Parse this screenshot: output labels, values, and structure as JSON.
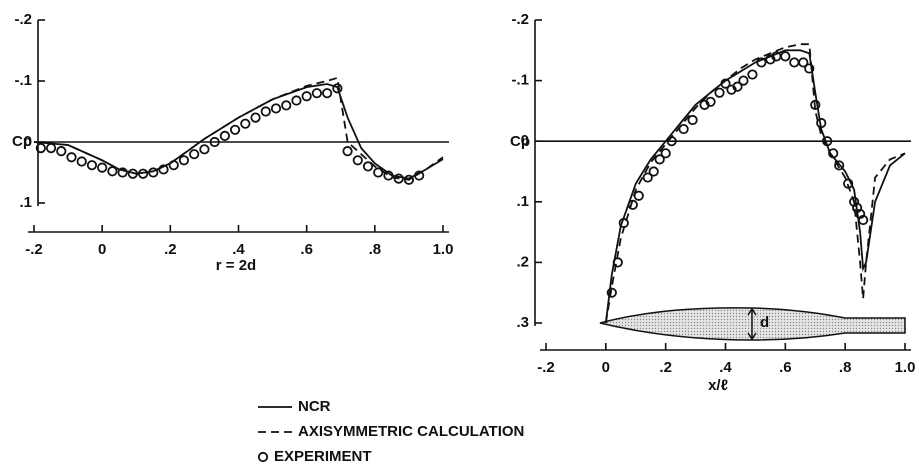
{
  "chart_data": [
    {
      "type": "line",
      "x_label": "r = 2d",
      "y_label": "Cp",
      "xlim": [
        -0.2,
        1.0
      ],
      "ylim": [
        -0.2,
        0.1
      ],
      "y_inverted": true,
      "zero_line": true,
      "xticks": [
        {
          "value": -0.2,
          "label": "-.2"
        },
        0,
        {
          "value": 0.2,
          "label": ".2"
        },
        {
          "value": 0.4,
          "label": ".4"
        },
        {
          "value": 0.6,
          "label": ".6"
        },
        {
          "value": 0.8,
          "label": ".8"
        },
        {
          "value": 1.0,
          "label": "1.0"
        }
      ],
      "yticks": [
        {
          "value": -0.2,
          "label": "-.2"
        },
        {
          "value": -0.1,
          "label": "-.1"
        },
        0,
        {
          "value": 0.1,
          "label": ".1"
        }
      ],
      "series": [
        {
          "name": "NCR",
          "style": "solid",
          "color": "#111111",
          "x": [
            -0.2,
            -0.1,
            0,
            0.05,
            0.1,
            0.15,
            0.2,
            0.25,
            0.3,
            0.4,
            0.5,
            0.6,
            0.66,
            0.69,
            0.72,
            0.76,
            0.8,
            0.85,
            0.9,
            0.95,
            1.0
          ],
          "values": [
            0,
            0.005,
            0.03,
            0.045,
            0.052,
            0.048,
            0.035,
            0.015,
            -0.005,
            -0.04,
            -0.07,
            -0.09,
            -0.095,
            -0.09,
            -0.04,
            0.01,
            0.035,
            0.055,
            0.06,
            0.045,
            0.028
          ]
        },
        {
          "name": "AXISYMMETRIC CALCULATION",
          "style": "dashed",
          "color": "#111111",
          "x": [
            -0.2,
            -0.1,
            0,
            0.05,
            0.1,
            0.15,
            0.2,
            0.25,
            0.3,
            0.4,
            0.5,
            0.6,
            0.66,
            0.69,
            0.72,
            0.76,
            0.8,
            0.85,
            0.9,
            0.95,
            1.0
          ],
          "values": [
            0,
            0.005,
            0.03,
            0.045,
            0.052,
            0.048,
            0.035,
            0.015,
            -0.005,
            -0.04,
            -0.07,
            -0.092,
            -0.1,
            -0.105,
            0.0,
            0.02,
            0.04,
            0.058,
            0.062,
            0.045,
            0.025
          ]
        },
        {
          "name": "EXPERIMENT",
          "style": "marker",
          "color": "#111111",
          "x": [
            -0.18,
            -0.15,
            -0.12,
            -0.09,
            -0.06,
            -0.03,
            0,
            0.03,
            0.06,
            0.09,
            0.12,
            0.15,
            0.18,
            0.21,
            0.24,
            0.27,
            0.3,
            0.33,
            0.36,
            0.39,
            0.42,
            0.45,
            0.48,
            0.51,
            0.54,
            0.57,
            0.6,
            0.63,
            0.66,
            0.69,
            0.72,
            0.75,
            0.78,
            0.81,
            0.84,
            0.87,
            0.9,
            0.93
          ],
          "values": [
            0.01,
            0.01,
            0.015,
            0.025,
            0.032,
            0.038,
            0.042,
            0.048,
            0.05,
            0.052,
            0.052,
            0.05,
            0.045,
            0.038,
            0.03,
            0.02,
            0.012,
            0.0,
            -0.01,
            -0.02,
            -0.03,
            -0.04,
            -0.05,
            -0.055,
            -0.06,
            -0.068,
            -0.075,
            -0.08,
            -0.08,
            -0.088,
            0.015,
            0.03,
            0.04,
            0.05,
            0.055,
            0.06,
            0.062,
            0.055
          ]
        }
      ]
    },
    {
      "type": "line",
      "x_label": "x/ℓ",
      "y_label": "Cp",
      "annotation": "d",
      "xlim": [
        -0.2,
        1.0
      ],
      "ylim": [
        -0.2,
        0.3
      ],
      "y_inverted": true,
      "zero_line": true,
      "xticks": [
        {
          "value": -0.2,
          "label": "-.2"
        },
        0,
        {
          "value": 0.2,
          "label": ".2"
        },
        {
          "value": 0.4,
          "label": ".4"
        },
        {
          "value": 0.6,
          "label": ".6"
        },
        {
          "value": 0.8,
          "label": ".8"
        },
        {
          "value": 1.0,
          "label": "1.0"
        }
      ],
      "yticks": [
        {
          "value": -0.2,
          "label": "-.2"
        },
        {
          "value": -0.1,
          "label": "-.1"
        },
        0,
        {
          "value": 0.1,
          "label": ".1"
        },
        {
          "value": 0.2,
          "label": ".2"
        },
        {
          "value": 0.3,
          "label": ".3"
        }
      ],
      "series": [
        {
          "name": "NCR",
          "style": "solid",
          "color": "#111111",
          "x": [
            0,
            0.02,
            0.05,
            0.1,
            0.15,
            0.2,
            0.25,
            0.3,
            0.35,
            0.4,
            0.45,
            0.5,
            0.55,
            0.6,
            0.65,
            0.68,
            0.7,
            0.72,
            0.75,
            0.8,
            0.83,
            0.85,
            0.86,
            0.87,
            0.9,
            0.95,
            1.0
          ],
          "values": [
            0.3,
            0.22,
            0.14,
            0.07,
            0.03,
            0,
            -0.03,
            -0.06,
            -0.08,
            -0.1,
            -0.115,
            -0.13,
            -0.14,
            -0.15,
            -0.15,
            -0.145,
            -0.08,
            -0.02,
            0.02,
            0.05,
            0.08,
            0.15,
            0.21,
            0.2,
            0.1,
            0.04,
            0.02
          ]
        },
        {
          "name": "AXISYMMETRIC CALCULATION",
          "style": "dashed",
          "color": "#111111",
          "x": [
            0,
            0.02,
            0.05,
            0.1,
            0.15,
            0.2,
            0.25,
            0.3,
            0.35,
            0.4,
            0.45,
            0.5,
            0.55,
            0.6,
            0.65,
            0.68,
            0.7,
            0.72,
            0.75,
            0.8,
            0.83,
            0.85,
            0.86,
            0.87,
            0.9,
            0.95,
            1.0
          ],
          "values": [
            0.3,
            0.24,
            0.16,
            0.08,
            0.035,
            0.005,
            -0.025,
            -0.055,
            -0.08,
            -0.1,
            -0.12,
            -0.135,
            -0.145,
            -0.155,
            -0.16,
            -0.16,
            -0.05,
            -0.01,
            0.02,
            0.06,
            0.1,
            0.2,
            0.26,
            0.2,
            0.06,
            0.03,
            0.02
          ]
        },
        {
          "name": "EXPERIMENT",
          "style": "marker",
          "color": "#111111",
          "x": [
            0.02,
            0.04,
            0.06,
            0.09,
            0.11,
            0.14,
            0.16,
            0.18,
            0.2,
            0.22,
            0.26,
            0.29,
            0.33,
            0.35,
            0.38,
            0.4,
            0.42,
            0.44,
            0.46,
            0.49,
            0.52,
            0.55,
            0.57,
            0.6,
            0.63,
            0.66,
            0.68,
            0.7,
            0.72,
            0.74,
            0.76,
            0.78,
            0.81,
            0.83,
            0.84,
            0.85,
            0.86
          ],
          "values": [
            0.25,
            0.2,
            0.135,
            0.105,
            0.09,
            0.06,
            0.05,
            0.03,
            0.02,
            0.0,
            -0.02,
            -0.035,
            -0.06,
            -0.065,
            -0.08,
            -0.095,
            -0.085,
            -0.09,
            -0.1,
            -0.11,
            -0.13,
            -0.135,
            -0.14,
            -0.14,
            -0.13,
            -0.13,
            -0.12,
            -0.06,
            -0.03,
            0.0,
            0.02,
            0.04,
            0.07,
            0.1,
            0.11,
            0.12,
            0.13
          ]
        }
      ]
    }
  ]
}
